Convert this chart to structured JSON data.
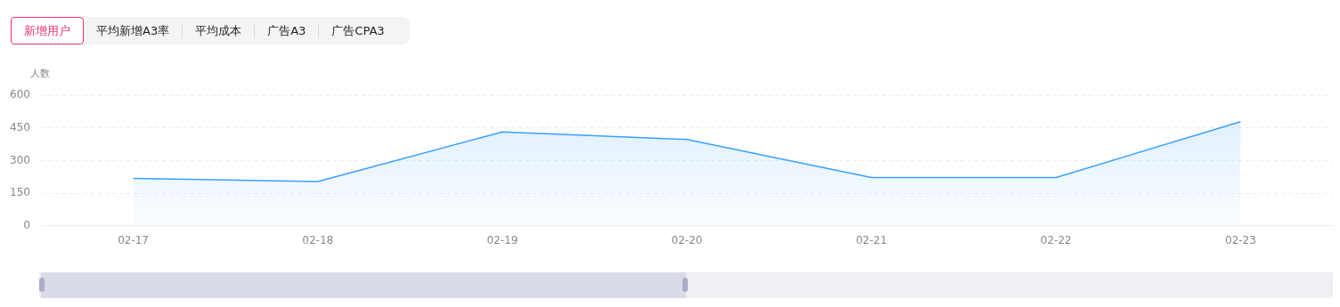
{
  "chart_data": {
    "type": "area",
    "ylabel": "人数",
    "annotations": [
      "新增用户",
      "平均新增A3率",
      "平均成本",
      "广告A3",
      "广告CPA3"
    ],
    "categories": [
      "02-17",
      "02-18",
      "02-19",
      "02-20",
      "02-21",
      "02-22",
      "02-23"
    ],
    "series": [
      {
        "color": "#3aa0ff",
        "values": [
          218,
          203,
          432,
          397,
          222,
          222,
          479
        ]
      }
    ],
    "ylim": [
      0,
      600
    ],
    "yticks": [
      0,
      150,
      300,
      450,
      600
    ],
    "grid": "y",
    "legend": false,
    "marker": "none",
    "line_style": "solid"
  }
}
